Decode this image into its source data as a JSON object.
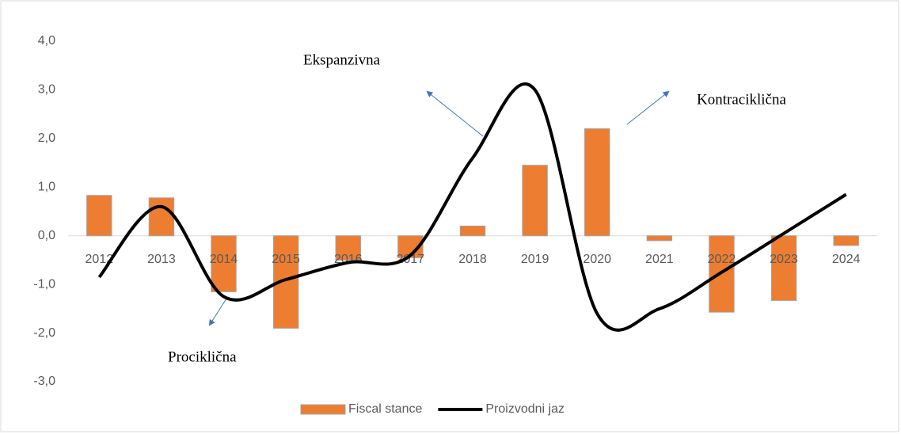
{
  "chart_data": {
    "type": "bar_line",
    "categories": [
      "2012",
      "2013",
      "2014",
      "2015",
      "2016",
      "2017",
      "2018",
      "2019",
      "2020",
      "2021",
      "2022",
      "2023",
      "2024"
    ],
    "series": [
      {
        "name": "Fiscal stance",
        "type": "bar",
        "color": "#ed7d31",
        "values": [
          0.83,
          0.78,
          -1.15,
          -1.9,
          -0.5,
          -0.45,
          0.2,
          1.45,
          2.2,
          -0.1,
          -1.57,
          -1.33,
          -0.2
        ]
      },
      {
        "name": "Proizvodni jaz",
        "type": "line",
        "color": "#000000",
        "values": [
          -0.85,
          0.6,
          -1.25,
          -0.9,
          -0.55,
          -0.4,
          1.6,
          3.0,
          -1.6,
          -1.5,
          -0.75,
          0.05,
          0.85
        ]
      }
    ],
    "ylim": [
      -3,
      4
    ],
    "yticks": [
      {
        "value": -3,
        "label": "-3,0"
      },
      {
        "value": -2,
        "label": "-2,0"
      },
      {
        "value": -1,
        "label": "-1,0"
      },
      {
        "value": 0,
        "label": "0,0"
      },
      {
        "value": 1,
        "label": "1,0"
      },
      {
        "value": 2,
        "label": "2,0"
      },
      {
        "value": 3,
        "label": "3,0"
      },
      {
        "value": 4,
        "label": "4,0"
      }
    ],
    "annotations": [
      "Ekspanzivna",
      "Kontraciklična",
      "Prociklična"
    ],
    "legend": "bottom"
  }
}
